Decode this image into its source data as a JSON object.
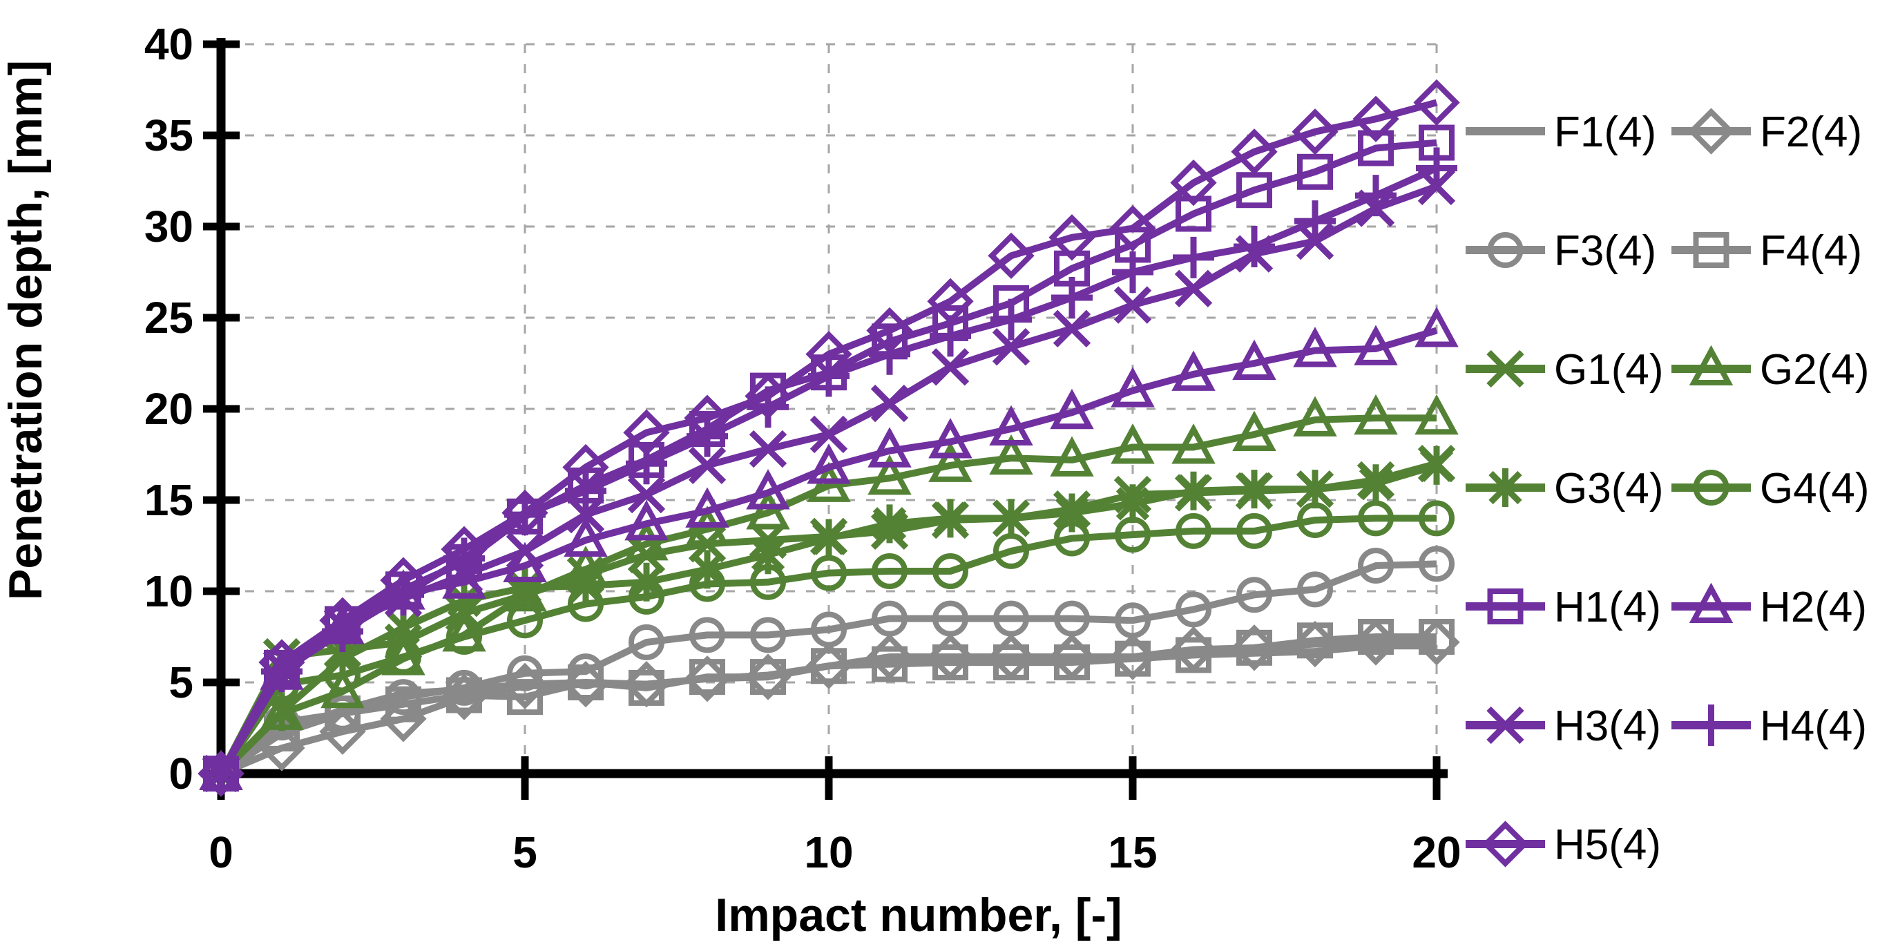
{
  "chart_data": {
    "type": "line",
    "title": "",
    "xlabel": "Impact number, [-]",
    "ylabel": "Penetration depth, [mm]",
    "xlim": [
      0,
      20
    ],
    "ylim": [
      0,
      40
    ],
    "x_ticks": [
      0,
      5,
      10,
      15,
      20
    ],
    "y_ticks": [
      0,
      5,
      10,
      15,
      20,
      25,
      30,
      35,
      40
    ],
    "grid": "dashed",
    "legend_position": "right",
    "legend_columns": 2,
    "colors": {
      "gray_group": "#898989",
      "green_group": "#548235",
      "purple_group": "#7030A0",
      "axis": "#000000",
      "gridline": "#A6A6A6"
    },
    "x": [
      0,
      1,
      2,
      3,
      4,
      5,
      6,
      7,
      8,
      9,
      10,
      11,
      12,
      13,
      14,
      15,
      16,
      17,
      18,
      19,
      20
    ],
    "series": [
      {
        "name": "F1(4)",
        "group": "F",
        "color": "#898989",
        "marker": "none",
        "values": [
          0,
          2.3,
          3.5,
          4.4,
          4.6,
          4.9,
          5.0,
          4.9,
          5.2,
          5.4,
          5.9,
          6.2,
          6.2,
          6.2,
          6.2,
          6.3,
          6.5,
          6.6,
          6.7,
          7.0,
          7.0
        ]
      },
      {
        "name": "F2(4)",
        "group": "F",
        "color": "#898989",
        "marker": "diamond",
        "values": [
          0,
          1.4,
          2.3,
          3.0,
          4.2,
          4.8,
          4.9,
          4.9,
          5.2,
          5.3,
          5.9,
          6.4,
          6.4,
          6.4,
          6.4,
          6.4,
          6.8,
          6.9,
          7.1,
          7.2,
          7.2
        ]
      },
      {
        "name": "F3(4)",
        "group": "F",
        "color": "#898989",
        "marker": "circle",
        "values": [
          0,
          2.8,
          3.3,
          4.2,
          4.7,
          5.5,
          5.6,
          7.2,
          7.6,
          7.6,
          7.9,
          8.5,
          8.5,
          8.5,
          8.5,
          8.4,
          9.0,
          9.8,
          10.1,
          11.4,
          11.5
        ]
      },
      {
        "name": "F4(4)",
        "group": "F",
        "color": "#898989",
        "marker": "square",
        "values": [
          0,
          2.2,
          3.3,
          3.8,
          4.3,
          4.2,
          5.0,
          4.7,
          5.3,
          5.3,
          5.9,
          6.0,
          6.1,
          6.1,
          6.1,
          6.3,
          6.5,
          6.9,
          7.3,
          7.5,
          7.5
        ]
      },
      {
        "name": "G1(4)",
        "group": "G",
        "color": "#548235",
        "marker": "x",
        "values": [
          0,
          6.4,
          6.8,
          7.2,
          8.8,
          9.8,
          10.9,
          12.0,
          12.6,
          12.8,
          13.0,
          13.3,
          13.9,
          14.0,
          14.5,
          15.3,
          15.4,
          15.5,
          15.6,
          16.1,
          17.0
        ]
      },
      {
        "name": "G2(4)",
        "group": "G",
        "color": "#548235",
        "marker": "triangle",
        "values": [
          0,
          3.3,
          4.5,
          6.3,
          7.6,
          9.8,
          11.2,
          12.6,
          13.4,
          14.3,
          15.8,
          16.2,
          16.9,
          17.3,
          17.2,
          17.9,
          17.9,
          18.6,
          19.4,
          19.5,
          19.5
        ]
      },
      {
        "name": "G3(4)",
        "group": "G",
        "color": "#548235",
        "marker": "asterisk",
        "values": [
          0,
          3.4,
          6.3,
          8.0,
          9.5,
          10.2,
          10.3,
          10.5,
          11.2,
          12.0,
          12.9,
          13.7,
          14.0,
          14.0,
          14.3,
          14.8,
          15.5,
          15.6,
          15.6,
          15.9,
          16.9
        ]
      },
      {
        "name": "G4(4)",
        "group": "G",
        "color": "#548235",
        "marker": "circle",
        "values": [
          0,
          4.9,
          5.4,
          6.4,
          7.5,
          8.4,
          9.3,
          9.7,
          10.4,
          10.5,
          11.0,
          11.1,
          11.1,
          12.2,
          12.9,
          13.1,
          13.3,
          13.3,
          13.9,
          14.0,
          14.0
        ]
      },
      {
        "name": "H1(4)",
        "group": "H",
        "color": "#7030A0",
        "marker": "square",
        "values": [
          0,
          5.8,
          8.2,
          10.1,
          11.6,
          14.1,
          15.8,
          17.2,
          18.9,
          21.0,
          22.0,
          23.7,
          24.7,
          25.8,
          27.7,
          29.0,
          30.7,
          32.0,
          33.0,
          34.3,
          34.6
        ]
      },
      {
        "name": "H2(4)",
        "group": "H",
        "color": "#7030A0",
        "marker": "triangle",
        "values": [
          0,
          5.5,
          8.0,
          9.9,
          10.5,
          11.4,
          12.8,
          13.7,
          14.4,
          15.4,
          16.8,
          17.7,
          18.2,
          18.9,
          19.8,
          21.0,
          21.9,
          22.5,
          23.2,
          23.3,
          24.3
        ]
      },
      {
        "name": "H3(4)",
        "group": "H",
        "color": "#7030A0",
        "marker": "x",
        "values": [
          0,
          5.8,
          8.1,
          9.6,
          10.9,
          12.2,
          14.2,
          15.3,
          16.9,
          17.8,
          18.6,
          20.3,
          22.3,
          23.4,
          24.4,
          25.7,
          26.6,
          28.5,
          29.2,
          31.0,
          32.2
        ]
      },
      {
        "name": "H4(4)",
        "group": "H",
        "color": "#7030A0",
        "marker": "plus",
        "values": [
          0,
          5.6,
          7.8,
          9.8,
          11.8,
          14.2,
          15.5,
          17.0,
          18.5,
          20.1,
          21.8,
          23.0,
          24.0,
          24.9,
          26.1,
          27.5,
          28.3,
          28.9,
          30.3,
          31.7,
          33.2
        ]
      },
      {
        "name": "H5(4)",
        "group": "H",
        "color": "#7030A0",
        "marker": "diamond",
        "values": [
          0,
          6.1,
          8.4,
          10.6,
          12.3,
          14.3,
          16.8,
          18.7,
          19.5,
          20.7,
          23.0,
          24.3,
          25.9,
          28.4,
          29.4,
          29.9,
          32.4,
          34.1,
          35.2,
          35.9,
          36.8
        ]
      }
    ]
  }
}
